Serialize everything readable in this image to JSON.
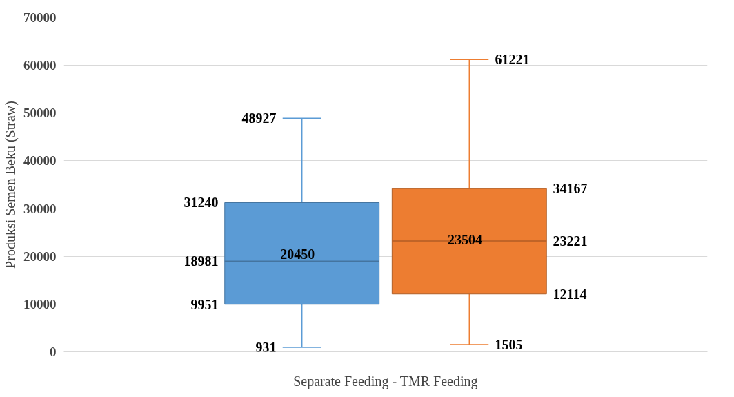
{
  "chart_data": {
    "type": "box",
    "ylabel": "Produksi Semen Beku (Straw)",
    "categories": [
      "Separate Feeding - TMR Feeding"
    ],
    "series": [
      {
        "color": "#5b9bd5",
        "boxes": [
          {
            "low": 931,
            "q1": 9951,
            "median": 18981,
            "q3": 31240,
            "high": 48927,
            "mean": 20450
          }
        ]
      },
      {
        "color": "#ed7d31",
        "boxes": [
          {
            "low": 1505,
            "q1": 12114,
            "median": 23221,
            "q3": 34167,
            "high": 61221,
            "mean": 23504
          }
        ]
      }
    ],
    "annotations": [
      "931",
      "9951",
      "18981",
      "31240",
      "48927",
      "20450",
      "1505",
      "12114",
      "23221",
      "34167",
      "61221",
      "23504"
    ],
    "ylim": [
      0,
      70000
    ],
    "yticks": [
      0,
      10000,
      20000,
      30000,
      40000,
      50000,
      60000,
      70000
    ],
    "grid": "y",
    "data_labels": true
  }
}
